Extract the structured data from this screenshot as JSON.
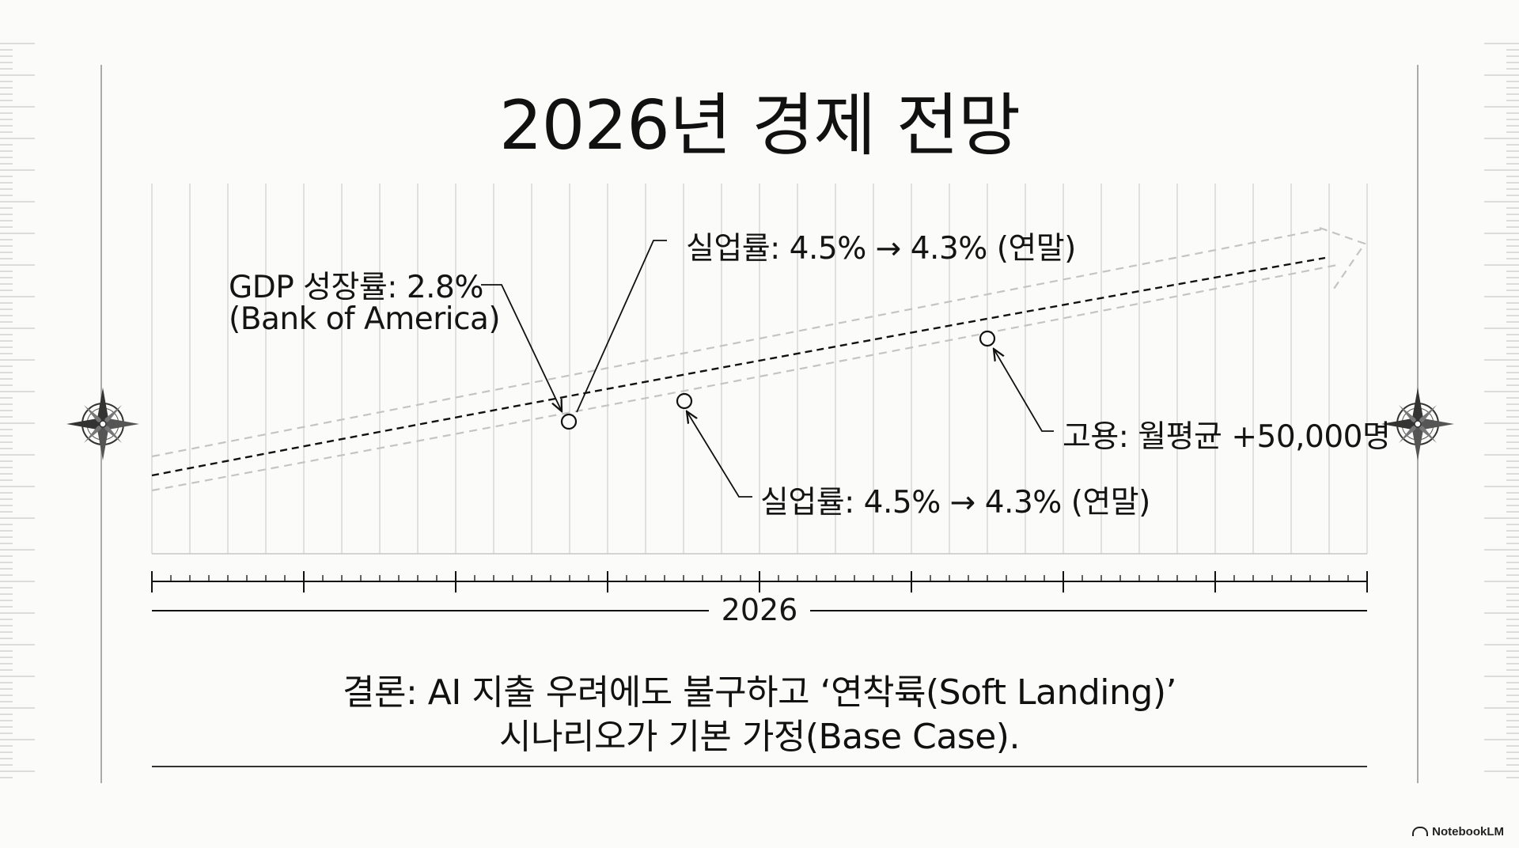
{
  "title": "2026년 경제 전망",
  "callouts": {
    "gdp_line1": "GDP 성장률: 2.8%",
    "gdp_line2": "(Bank of America)",
    "unemployment_top": "실업률: 4.5% → 4.3% (연말)",
    "unemployment_bottom": "실업률: 4.5% → 4.3% (연말)",
    "employment": "고용: 월평균 +50,000명"
  },
  "axis": {
    "year_label": "2026"
  },
  "conclusion": {
    "line1": "결론: AI 지출 우려에도 불구하고 ‘연착륙(Soft Landing)’",
    "line2": "시나리오가 기본 가정(Base Case)."
  },
  "brand": "NotebookLM",
  "icons": [
    "compass-rose-icon",
    "notebooklm-logo-icon"
  ],
  "colors": {
    "background": "#fbfbf9",
    "ink": "#111111",
    "grid": "#d2d2d2",
    "band": "#c4c4c4"
  }
}
